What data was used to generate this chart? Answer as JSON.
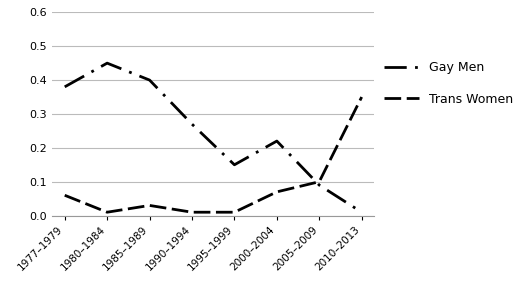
{
  "x_labels": [
    "1977–1979",
    "1980–1984",
    "1985–1989",
    "1990–1994",
    "1995–1999",
    "2000–2004",
    "2005–2009",
    "2010–2013"
  ],
  "gay_men": [
    0.38,
    0.45,
    0.4,
    0.27,
    0.15,
    0.22,
    0.09,
    0.01
  ],
  "trans_women": [
    0.06,
    0.01,
    0.03,
    0.01,
    0.01,
    0.07,
    0.1,
    0.35
  ],
  "ylim": [
    0,
    0.6
  ],
  "yticks": [
    0.0,
    0.1,
    0.2,
    0.3,
    0.4,
    0.5,
    0.6
  ],
  "gay_men_label": "Gay Men",
  "trans_women_label": "Trans Women",
  "line_color": "#000000",
  "background_color": "#ffffff",
  "grid_color": "#bbbbbb"
}
